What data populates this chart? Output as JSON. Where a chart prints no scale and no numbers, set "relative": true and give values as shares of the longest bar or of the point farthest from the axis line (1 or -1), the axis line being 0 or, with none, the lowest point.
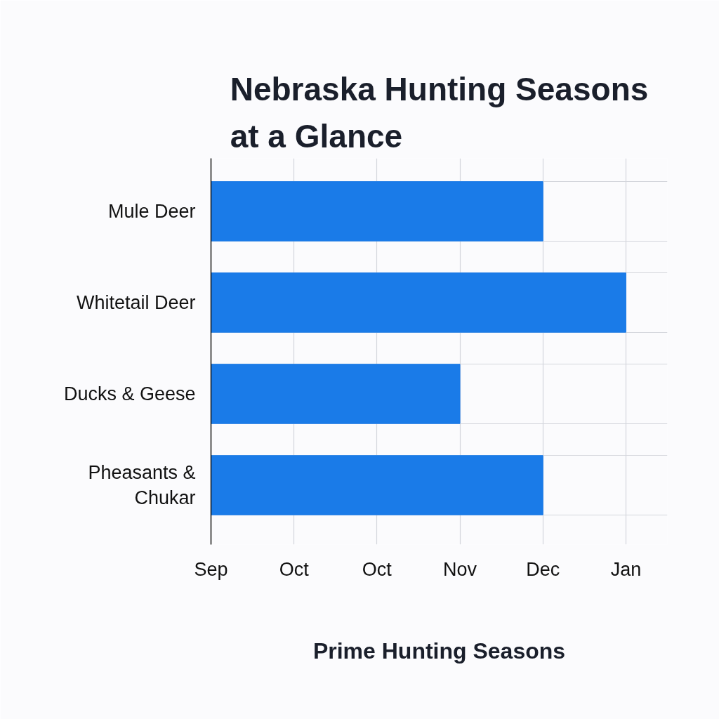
{
  "chart_data": {
    "type": "bar",
    "orientation": "horizontal",
    "relative": true,
    "title": "Nebraska Hunting Seasons at a Glance",
    "xlabel": "Prime Hunting Seasons",
    "categories": [
      "Mule Deer",
      "Whitetail Deer",
      "Ducks & Geese",
      "Pheasants & Chukar"
    ],
    "values": [
      0.8,
      1,
      0.6,
      0.8
    ],
    "color": "#1a7be8",
    "annotations": [
      "Sep",
      "Oct",
      "Oct",
      "Nov",
      "Dec",
      "Jan"
    ],
    "grid": true
  }
}
